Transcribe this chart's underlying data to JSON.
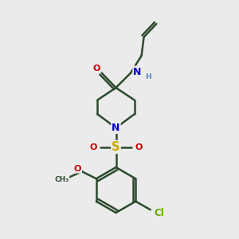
{
  "bg_color": "#ebebeb",
  "bond_color": "#2d4a2d",
  "bond_width": 1.8,
  "atom_colors": {
    "C": "#2d4a2d",
    "N": "#0000cc",
    "O": "#cc0000",
    "S": "#ccaa00",
    "Cl": "#66aa00",
    "H": "#5588bb"
  },
  "font_size": 9,
  "figsize": [
    3.0,
    3.0
  ],
  "dpi": 100
}
